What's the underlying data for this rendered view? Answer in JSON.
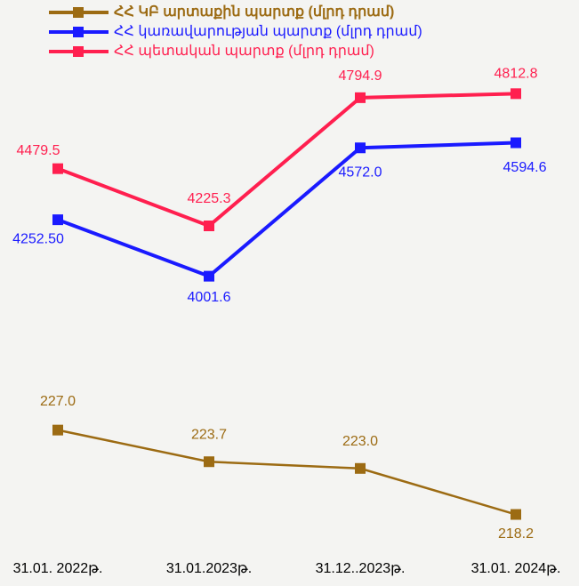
{
  "chart_data": {
    "type": "line",
    "categories": [
      "31.01. 2022թ.",
      "31.01.2023թ.",
      "31.12..2023թ.",
      "31.01. 2024թ."
    ],
    "series": [
      {
        "name": "ՀՀ ԿԲ արտաքին պարտք (մլրդ դրամ)",
        "color": "#9c6b13",
        "axis": "y2",
        "values": [
          227.0,
          223.7,
          223.0,
          218.2
        ],
        "value_labels": [
          "227.0",
          "223.7",
          "223.0",
          "218.2"
        ]
      },
      {
        "name": "ՀՀ կառավարության պարտք (մլրդ դրամ)",
        "color": "#1a1aff",
        "values": [
          4252.5,
          4001.6,
          4572.0,
          4594.6
        ],
        "value_labels": [
          "4252.50",
          "4001.6",
          "4572.0",
          "4594.6"
        ]
      },
      {
        "name": "ՀՀ պետական պարտք (մլրդ դրամ)",
        "color": "#ff1f4f",
        "values": [
          4479.5,
          4225.3,
          4794.9,
          4812.8
        ],
        "value_labels": [
          "4479.5",
          "4225.3",
          "4794.9",
          "4812.8"
        ]
      }
    ],
    "ylim": [
      2700,
      5150
    ],
    "y2lim": [
      212.5,
      270
    ]
  }
}
